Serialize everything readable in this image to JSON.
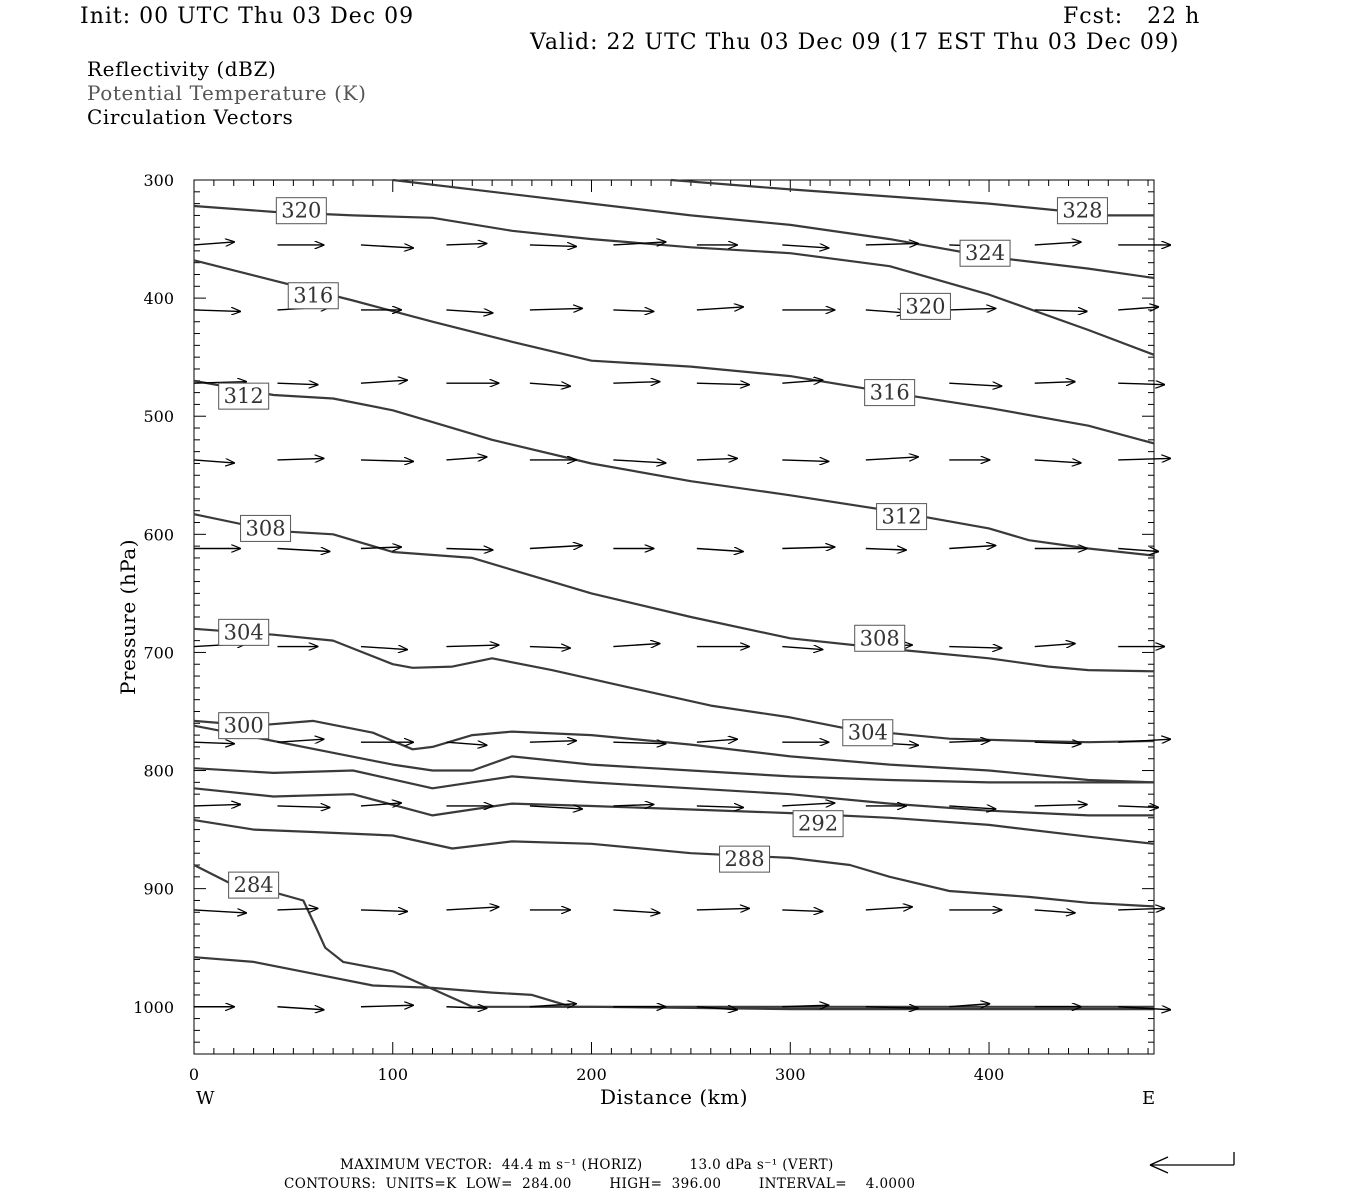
{
  "header": {
    "init": "Init: 00 UTC Thu 03 Dec 09",
    "fcst": "Fcst:   22 h",
    "valid": "Valid: 22 UTC Thu 03 Dec 09 (17 EST Thu 03 Dec 09)"
  },
  "legend": {
    "line1": "Reflectivity (dBZ)",
    "line2": "Potential Temperature (K)",
    "line3": "Circulation Vectors"
  },
  "footer": {
    "vector_line": "MAXIMUM VECTOR:  44.4 m s⁻¹ (HORIZ)          13.0 dPa s⁻¹ (VERT)",
    "contour_line": "CONTOURS:  UNITS=K  LOW=  284.00        HIGH=  396.00        INTERVAL=    4.0000"
  },
  "chart_data": {
    "type": "line",
    "title": "",
    "xlabel": "Distance (km)",
    "ylabel": "Pressure (hPa)",
    "xlim": [
      0,
      483
    ],
    "ylim": [
      1040,
      300
    ],
    "x_ticks": [
      0,
      100,
      200,
      300,
      400
    ],
    "y_ticks": [
      300,
      400,
      500,
      600,
      700,
      800,
      900,
      1000
    ],
    "x_end_labels": {
      "left": "W",
      "right": "E"
    },
    "grid": false,
    "contour_color": "#3a3a3a",
    "vector_color": "#000000",
    "series": [
      {
        "label": "",
        "x": [
          0,
          30,
          60,
          90,
          120,
          150,
          170,
          190,
          210,
          240,
          270,
          300,
          330,
          360,
          390,
          420,
          450,
          483
        ],
        "y": [
          958,
          962,
          972,
          982,
          984,
          988,
          990,
          1000,
          1000,
          1000,
          1000,
          1000,
          1000,
          1000,
          1000,
          1000,
          1000,
          1000
        ]
      },
      {
        "label": "284",
        "x": [
          0,
          20,
          40,
          55,
          62,
          66,
          75,
          100,
          120,
          140,
          160,
          200,
          250,
          300,
          350,
          400,
          450,
          483
        ],
        "y": [
          880,
          897,
          903,
          910,
          935,
          950,
          962,
          970,
          985,
          1000,
          1000,
          1000,
          1001,
          1002,
          1002,
          1002,
          1002,
          1002
        ]
      },
      {
        "label": "288",
        "x": [
          0,
          30,
          60,
          100,
          130,
          160,
          200,
          250,
          300,
          330,
          350,
          380,
          420,
          450,
          483
        ],
        "y": [
          842,
          850,
          852,
          855,
          866,
          860,
          862,
          870,
          874,
          880,
          890,
          902,
          907,
          912,
          915
        ]
      },
      {
        "label": "292",
        "x": [
          0,
          40,
          80,
          120,
          160,
          200,
          250,
          300,
          350,
          400,
          450,
          483
        ],
        "y": [
          815,
          822,
          820,
          838,
          828,
          830,
          833,
          836,
          840,
          846,
          856,
          862
        ]
      },
      {
        "label": "",
        "x": [
          0,
          40,
          80,
          120,
          160,
          200,
          250,
          300,
          350,
          400,
          450,
          483
        ],
        "y": [
          798,
          802,
          800,
          815,
          805,
          810,
          815,
          820,
          828,
          834,
          838,
          838
        ]
      },
      {
        "label": "",
        "x": [
          0,
          40,
          70,
          100,
          120,
          140,
          160,
          200,
          250,
          300,
          350,
          400,
          450,
          483
        ],
        "y": [
          762,
          775,
          785,
          795,
          800,
          800,
          788,
          795,
          800,
          805,
          808,
          810,
          810,
          810
        ]
      },
      {
        "label": "300",
        "x": [
          0,
          30,
          60,
          90,
          110,
          120,
          140,
          160,
          200,
          250,
          300,
          350,
          400,
          450,
          483
        ],
        "y": [
          758,
          762,
          758,
          768,
          782,
          780,
          770,
          767,
          770,
          778,
          788,
          795,
          800,
          808,
          810
        ]
      },
      {
        "label": "304",
        "x": [
          0,
          40,
          70,
          100,
          110,
          130,
          150,
          180,
          220,
          260,
          300,
          330,
          380,
          420,
          450,
          483
        ],
        "y": [
          680,
          685,
          690,
          710,
          713,
          712,
          705,
          715,
          730,
          745,
          755,
          765,
          773,
          775,
          776,
          775
        ]
      },
      {
        "label": "308",
        "x": [
          0,
          40,
          70,
          100,
          140,
          160,
          200,
          250,
          300,
          350,
          400,
          430,
          450,
          483
        ],
        "y": [
          583,
          597,
          600,
          615,
          620,
          630,
          650,
          670,
          688,
          697,
          705,
          712,
          715,
          716
        ]
      },
      {
        "label": "312",
        "x": [
          0,
          40,
          70,
          100,
          120,
          150,
          200,
          250,
          300,
          350,
          400,
          420,
          450,
          483
        ],
        "y": [
          470,
          482,
          485,
          495,
          505,
          520,
          540,
          555,
          567,
          580,
          595,
          605,
          612,
          618
        ]
      },
      {
        "label": "316",
        "x": [
          0,
          40,
          80,
          120,
          160,
          200,
          250,
          300,
          350,
          400,
          450,
          483
        ],
        "y": [
          368,
          385,
          402,
          420,
          437,
          453,
          458,
          466,
          480,
          493,
          508,
          523
        ]
      },
      {
        "label": "320",
        "x": [
          0,
          40,
          80,
          120,
          160,
          200,
          250,
          300,
          350,
          400,
          450,
          483
        ],
        "y": [
          322,
          327,
          330,
          332,
          343,
          350,
          357,
          362,
          373,
          397,
          427,
          448
        ]
      },
      {
        "label": "324",
        "x": [
          100,
          150,
          200,
          250,
          300,
          350,
          400,
          450,
          483
        ],
        "y": [
          300,
          310,
          320,
          330,
          338,
          350,
          365,
          375,
          383
        ]
      },
      {
        "label": "328",
        "x": [
          240,
          300,
          350,
          400,
          430,
          460,
          483
        ],
        "y": [
          300,
          308,
          314,
          320,
          325,
          330,
          330
        ]
      }
    ],
    "contour_labels": [
      {
        "text": "320",
        "x": 54,
        "y": 326
      },
      {
        "text": "316",
        "x": 60,
        "y": 398
      },
      {
        "text": "312",
        "x": 25,
        "y": 483
      },
      {
        "text": "308",
        "x": 36,
        "y": 595
      },
      {
        "text": "304",
        "x": 25,
        "y": 683
      },
      {
        "text": "300",
        "x": 25,
        "y": 762
      },
      {
        "text": "284",
        "x": 30,
        "y": 897
      },
      {
        "text": "328",
        "x": 447,
        "y": 326
      },
      {
        "text": "324",
        "x": 398,
        "y": 362
      },
      {
        "text": "320",
        "x": 368,
        "y": 407
      },
      {
        "text": "316",
        "x": 350,
        "y": 480
      },
      {
        "text": "312",
        "x": 356,
        "y": 585
      },
      {
        "text": "308",
        "x": 345,
        "y": 688
      },
      {
        "text": "304",
        "x": 339,
        "y": 768
      },
      {
        "text": "292",
        "x": 314,
        "y": 845
      },
      {
        "text": "288",
        "x": 277,
        "y": 875
      }
    ],
    "vector_levels": [
      {
        "p": 355,
        "xs": [
          0,
          42,
          84,
          127,
          169,
          211,
          253,
          296,
          338,
          380,
          423,
          465
        ],
        "u": 1,
        "w": 0
      },
      {
        "p": 410,
        "xs": [
          0,
          42,
          84,
          127,
          169,
          211,
          253,
          296,
          338,
          380,
          423,
          465
        ],
        "u": 1,
        "w": 0
      },
      {
        "p": 472,
        "xs": [
          0,
          42,
          84,
          127,
          169,
          211,
          253,
          296,
          338,
          380,
          423,
          465
        ],
        "u": 1,
        "w": 0
      },
      {
        "p": 537,
        "xs": [
          0,
          42,
          84,
          127,
          169,
          211,
          253,
          296,
          338,
          380,
          423,
          465
        ],
        "u": 1,
        "w": 0
      },
      {
        "p": 612,
        "xs": [
          0,
          42,
          84,
          127,
          169,
          211,
          253,
          296,
          338,
          380,
          423,
          465
        ],
        "u": 1,
        "w": 0
      },
      {
        "p": 695,
        "xs": [
          0,
          42,
          84,
          127,
          169,
          211,
          253,
          296,
          338,
          380,
          423,
          465
        ],
        "u": 1,
        "w": 0
      },
      {
        "p": 776,
        "xs": [
          0,
          42,
          84,
          127,
          169,
          211,
          253,
          296,
          338,
          380,
          423,
          465
        ],
        "u": 1,
        "w": 0
      },
      {
        "p": 830,
        "xs": [
          0,
          42,
          84,
          127,
          169,
          211,
          253,
          296,
          338,
          380,
          423,
          465
        ],
        "u": 1,
        "w": 0
      },
      {
        "p": 918,
        "xs": [
          0,
          42,
          84,
          127,
          169,
          211,
          253,
          296,
          338,
          380,
          423,
          465
        ],
        "u": 1,
        "w": 0
      },
      {
        "p": 1000,
        "xs": [
          0,
          42,
          84,
          127,
          169,
          211,
          253,
          296,
          338,
          380,
          423,
          465
        ],
        "u": 1,
        "w": 0
      }
    ]
  }
}
